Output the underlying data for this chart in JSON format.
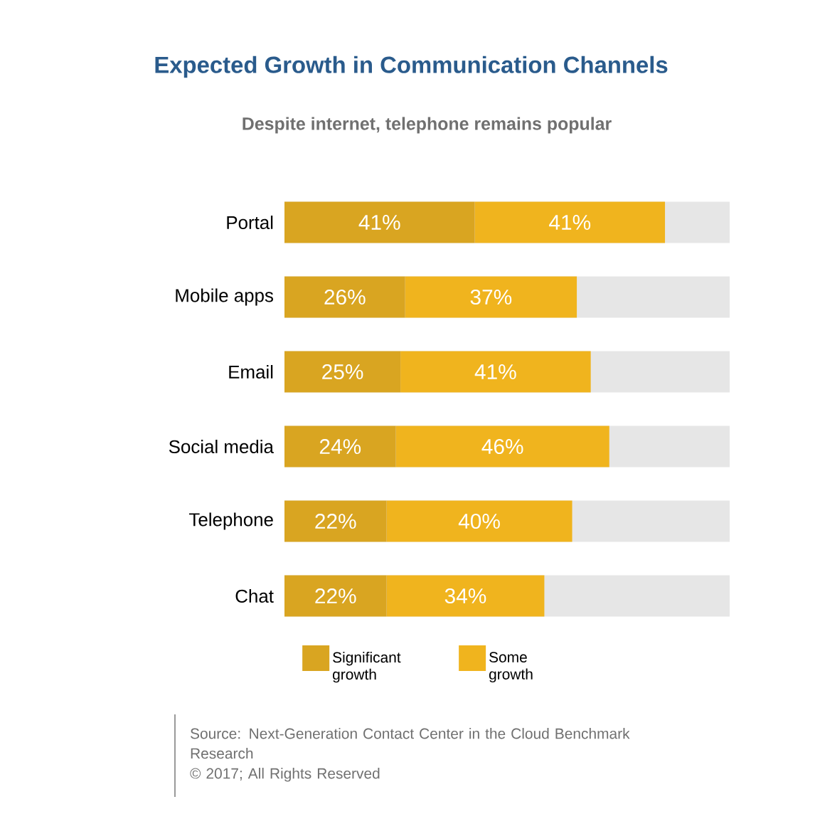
{
  "chart_data": {
    "type": "bar",
    "orientation": "horizontal",
    "stacked": true,
    "title": "Expected Growth in Communication Channels",
    "subtitle": "Despite internet, telephone remains popular",
    "categories": [
      "Portal",
      "Mobile apps",
      "Email",
      "Social media",
      "Telephone",
      "Chat"
    ],
    "series": [
      {
        "name": "Significant growth",
        "color": "#d9a521",
        "values": [
          41,
          26,
          25,
          24,
          22,
          22
        ],
        "value_labels": [
          "41%",
          "26%",
          "25%",
          "24%",
          "22%",
          "22%"
        ]
      },
      {
        "name": "Some growth",
        "color": "#f0b41e",
        "values": [
          41,
          37,
          41,
          46,
          40,
          34
        ],
        "value_labels": [
          "41%",
          "37%",
          "41%",
          "46%",
          "40%",
          "34%"
        ]
      }
    ],
    "tick_labels": "y",
    "legend": "bottom",
    "annotations": [
      "Source: Next-Generation Contact Center in the Cloud Benchmark Research",
      "© 2017; All Rights Reserved"
    ]
  }
}
